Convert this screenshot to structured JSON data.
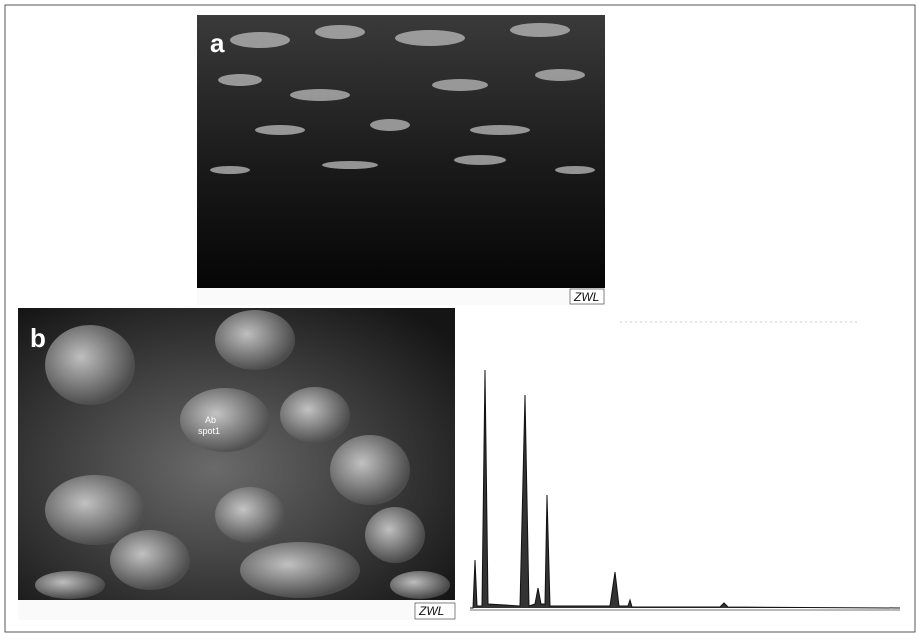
{
  "panels": [
    {
      "label": "a",
      "scale_mark": "ZWL"
    },
    {
      "label": "b",
      "scale_mark": "ZWL",
      "annotation": [
        "Ab",
        "spot1"
      ]
    }
  ]
}
